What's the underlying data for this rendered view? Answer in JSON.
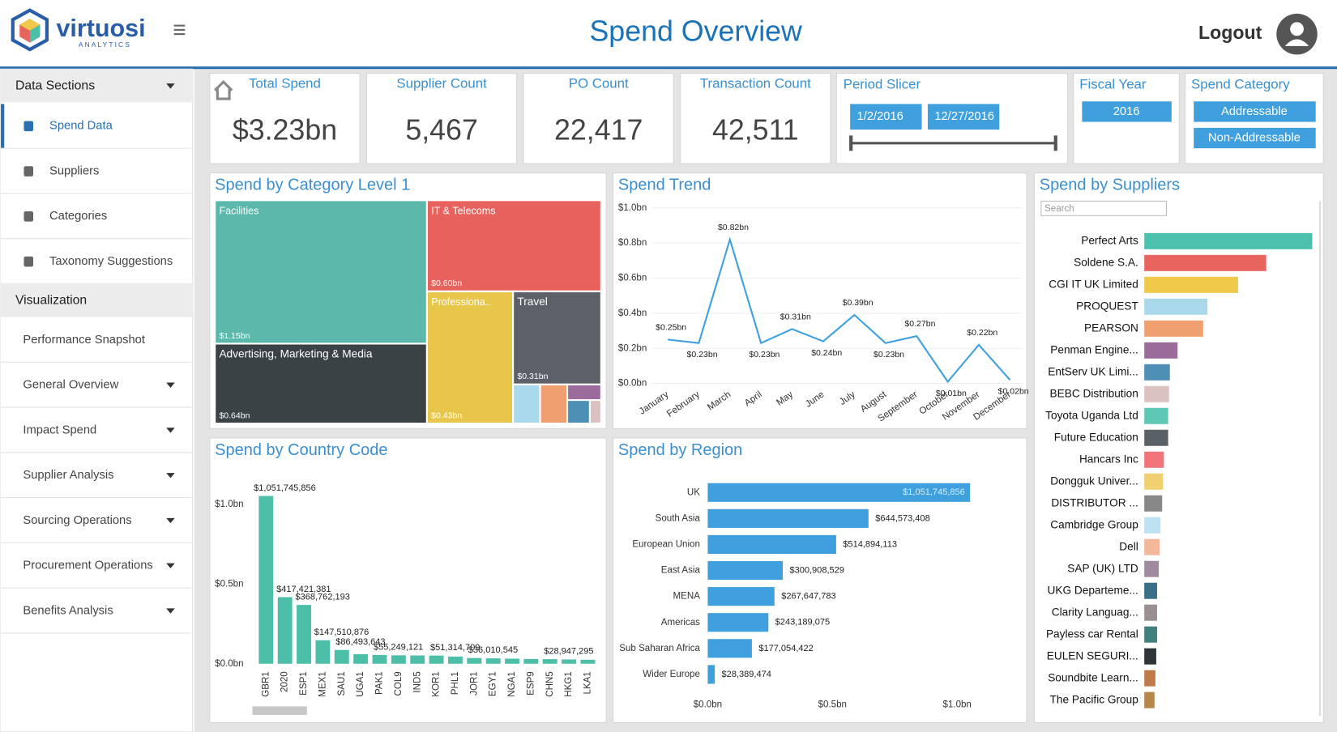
{
  "header": {
    "logo": "virtuosi",
    "logo_sub": "ANALYTICS",
    "title": "Spend Overview",
    "logout": "Logout"
  },
  "sidebar": {
    "sections": [
      {
        "title": "Data Sections",
        "items": [
          "Spend Data",
          "Suppliers",
          "Categories",
          "Taxonomy Suggestions"
        ]
      },
      {
        "title": "Visualization",
        "items": [
          "Performance Snapshot",
          "General Overview",
          "Impact Spend",
          "Supplier Analysis",
          "Sourcing Operations",
          "Procurement Operations",
          "Benefits Analysis"
        ]
      }
    ]
  },
  "kpis": [
    {
      "label": "Total Spend",
      "value": "$3.23bn"
    },
    {
      "label": "Supplier Count",
      "value": "5,467"
    },
    {
      "label": "PO Count",
      "value": "22,417"
    },
    {
      "label": "Transaction Count",
      "value": "42,511"
    }
  ],
  "period_slicer": {
    "title": "Period Slicer",
    "start": "1/2/2016",
    "end": "12/27/2016"
  },
  "fiscal_year": {
    "title": "Fiscal Year",
    "options": [
      "2016"
    ]
  },
  "spend_category": {
    "title": "Spend Category",
    "options": [
      "Addressable",
      "Non-Addressable"
    ]
  },
  "chart_data": [
    {
      "type": "treemap",
      "title": "Spend by Category Level 1",
      "categories": [
        "Facilities",
        "Advertising, Marketing & Media",
        "IT & Telecoms",
        "Professiona..",
        "Travel",
        null,
        null,
        null,
        null,
        null
      ],
      "values": [
        1.15,
        0.64,
        0.6,
        0.43,
        0.31,
        0.04,
        0.04,
        0.02,
        0.02,
        0.01
      ],
      "value_labels": [
        "$1.15bn",
        "$0.64bn",
        "$0.60bn",
        "$0.43bn",
        "$0.31bn",
        null,
        null,
        null,
        null,
        null
      ],
      "colors": [
        "#5bb8aa",
        "#3b4246",
        "#e8625d",
        "#e8c64a",
        "#5b6166",
        "#a9d9ea",
        "#f0a070",
        "#9b6b9b",
        "#4d8fb5",
        "#d9c2c0"
      ]
    },
    {
      "type": "line",
      "title": "Spend Trend",
      "categories": [
        "January",
        "February",
        "March",
        "April",
        "May",
        "June",
        "July",
        "August",
        "September",
        "October",
        "November",
        "December"
      ],
      "values": [
        0.25,
        0.23,
        0.82,
        0.23,
        0.31,
        0.24,
        0.39,
        0.23,
        0.27,
        0.01,
        0.22,
        0.02
      ],
      "value_labels": [
        "$0.25bn",
        "$0.23bn",
        "$0.82bn",
        "$0.23bn",
        "$0.31bn",
        "$0.24bn",
        "$0.39bn",
        "$0.23bn",
        "$0.27bn",
        "$0.01bn",
        "$0.22bn",
        "$0.02bn"
      ],
      "color": "#3fa0dd",
      "ylim": [
        0,
        1.0
      ],
      "yticks": [
        {
          "value": 0,
          "label": "$0.0bn"
        },
        {
          "value": 0.2,
          "label": "$0.2bn"
        },
        {
          "value": 0.4,
          "label": "$0.4bn"
        },
        {
          "value": 0.6,
          "label": "$0.6bn"
        },
        {
          "value": 0.8,
          "label": "$0.8bn"
        },
        {
          "value": 1.0,
          "label": "$1.0bn"
        }
      ],
      "grid": true
    },
    {
      "type": "bar",
      "title": "Spend by Country Code",
      "categories": [
        "GBR1",
        "2020",
        "ESP1",
        "MEX1",
        "SAU1",
        "UGA1",
        "PAK1",
        "COL9",
        "IND5",
        "KOR1",
        "PHL1",
        "JOR1",
        "EGY1",
        "NGA1",
        "ESP9",
        "CHN5",
        "HKG1",
        "LKA1"
      ],
      "values": [
        1.051745856,
        0.417421381,
        0.368762193,
        0.147510876,
        0.086493643,
        0.06,
        0.055249121,
        0.053,
        0.052,
        0.051314709,
        0.045,
        0.036010545,
        0.034,
        0.032,
        0.03,
        0.028947295,
        0.027,
        0.025
      ],
      "value_labels": [
        "$1,051,745,856",
        "$417,421,381",
        "$368,762,193",
        "$147,510,876",
        "$86,493,643",
        null,
        "$55,249,121",
        null,
        null,
        "$51,314,709",
        null,
        "$36,010,545",
        null,
        null,
        null,
        "$28,947,295",
        null,
        null
      ],
      "color": "#4dbfa8",
      "ylim": [
        0,
        1.1
      ],
      "yticks": [
        {
          "value": 0,
          "label": "$0.0bn"
        },
        {
          "value": 0.5,
          "label": "$0.5bn"
        },
        {
          "value": 1.0,
          "label": "$1.0bn"
        }
      ]
    },
    {
      "type": "hbar",
      "title": "Spend by Region",
      "categories": [
        "UK",
        "South Asia",
        "European Union",
        "East Asia",
        "MENA",
        "Americas",
        "Sub Saharan Africa",
        "Wider Europe"
      ],
      "values": [
        1.051745856,
        0.644573408,
        0.514894113,
        0.300908529,
        0.267647783,
        0.243189075,
        0.177054422,
        0.028389474
      ],
      "value_labels": [
        "$1,051,745,856",
        "$644,573,408",
        "$514,894,113",
        "$300,908,529",
        "$267,647,783",
        "$243,189,075",
        "$177,054,422",
        "$28,389,474"
      ],
      "color": "#3fa0dd",
      "xlim": [
        0,
        1.2
      ],
      "xticks": [
        {
          "value": 0,
          "label": "$0.0bn"
        },
        {
          "value": 0.5,
          "label": "$0.5bn"
        },
        {
          "value": 1.0,
          "label": "$1.0bn"
        }
      ]
    },
    {
      "type": "supplierbar",
      "title": "Spend by Suppliers",
      "search_placeholder": "Search",
      "categories": [
        "Perfect Arts",
        "Soldene S.A.",
        "CGI IT UK Limited",
        "PROQUEST",
        "PEARSON",
        "Penman Engine...",
        "EntServ UK Limi...",
        "BEBC Distribution",
        "Toyota Uganda Ltd",
        "Future Education",
        "Hancars Inc",
        "Dongguk Univer...",
        "DISTRIBUTOR ...",
        "Cambridge Group",
        "Dell",
        "SAP (UK) LTD",
        "UKG Departeme...",
        "Clarity Languag...",
        "Payless car Rental",
        "EULEN SEGURI...",
        "Soundbite Learn...",
        "The Pacific Group"
      ],
      "values": [
        197,
        143,
        110,
        74,
        69,
        39,
        30,
        29,
        28,
        28,
        23,
        22,
        21,
        19,
        18,
        17,
        15,
        15,
        15,
        14,
        13,
        12
      ],
      "colors": [
        "#4dc1ad",
        "#e8655f",
        "#f0c94a",
        "#a9d8ea",
        "#f0a070",
        "#9b6b9b",
        "#4d8fb5",
        "#d9c2c0",
        "#5ec7b5",
        "#5a6166",
        "#f0767a",
        "#f0d070",
        "#888888",
        "#bde3f0",
        "#f3b79a",
        "#a08aa0",
        "#3a6f88",
        "#9a8f90",
        "#3f8080",
        "#2e3538",
        "#c07a4a",
        "#b8864a"
      ]
    }
  ]
}
